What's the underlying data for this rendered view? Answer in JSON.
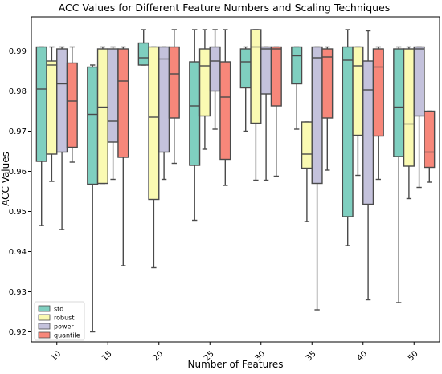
{
  "chart_data": {
    "type": "box",
    "title": "ACC Values for Different Feature Numbers and Scaling Techniques",
    "xlabel": "Number of Features",
    "ylabel": "ACC Values",
    "categories": [
      "10",
      "15",
      "20",
      "25",
      "30",
      "35",
      "40",
      "50"
    ],
    "ylim": [
      0.9175,
      0.9985
    ],
    "yticks": [
      0.92,
      0.93,
      0.94,
      0.95,
      0.96,
      0.97,
      0.98,
      0.99
    ],
    "ytick_labels": [
      "0.92",
      "0.93",
      "0.94",
      "0.95",
      "0.96",
      "0.97",
      "0.98",
      "0.99"
    ],
    "legend_position": "lower-left",
    "grid": false,
    "series": [
      {
        "name": "std",
        "color": "#7fcfc0",
        "boxes": [
          {
            "whislo": 0.9465,
            "q1": 0.9625,
            "med": 0.9805,
            "q3": 0.991,
            "whishi": 0.991
          },
          {
            "whislo": 0.92,
            "q1": 0.9568,
            "med": 0.9742,
            "q3": 0.986,
            "whishi": 0.9865
          },
          {
            "whislo": 0.9865,
            "q1": 0.9865,
            "med": 0.9883,
            "q3": 0.992,
            "whishi": 0.9953
          },
          {
            "whislo": 0.9478,
            "q1": 0.9615,
            "med": 0.9763,
            "q3": 0.9873,
            "whishi": 0.9953
          },
          {
            "whislo": 0.97,
            "q1": 0.9808,
            "med": 0.9873,
            "q3": 0.9905,
            "whishi": 0.991
          },
          {
            "whislo": 0.9705,
            "q1": 0.9818,
            "med": 0.9888,
            "q3": 0.991,
            "whishi": 0.991
          },
          {
            "whislo": 0.9415,
            "q1": 0.9487,
            "med": 0.9877,
            "q3": 0.991,
            "whishi": 0.9953
          },
          {
            "whislo": 0.9273,
            "q1": 0.9637,
            "med": 0.976,
            "q3": 0.9905,
            "whishi": 0.991
          }
        ]
      },
      {
        "name": "robust",
        "color": "#fafab2",
        "boxes": [
          {
            "whislo": 0.9575,
            "q1": 0.9643,
            "med": 0.9865,
            "q3": 0.9875,
            "whishi": 0.991
          },
          {
            "whislo": 0.957,
            "q1": 0.957,
            "med": 0.976,
            "q3": 0.9905,
            "whishi": 0.991
          },
          {
            "whislo": 0.936,
            "q1": 0.953,
            "med": 0.9735,
            "q3": 0.991,
            "whishi": 0.991
          },
          {
            "whislo": 0.9655,
            "q1": 0.9738,
            "med": 0.9863,
            "q3": 0.9905,
            "whishi": 0.9953
          },
          {
            "whislo": 0.9578,
            "q1": 0.972,
            "med": 0.991,
            "q3": 0.9953,
            "whishi": 0.9953
          },
          {
            "whislo": 0.9475,
            "q1": 0.9608,
            "med": 0.9643,
            "q3": 0.9723,
            "whishi": 0.9723
          },
          {
            "whislo": 0.959,
            "q1": 0.969,
            "med": 0.9863,
            "q3": 0.991,
            "whishi": 0.991
          },
          {
            "whislo": 0.9532,
            "q1": 0.9613,
            "med": 0.9718,
            "q3": 0.9905,
            "whishi": 0.991
          }
        ]
      },
      {
        "name": "power",
        "color": "#c4c2dc",
        "boxes": [
          {
            "whislo": 0.9455,
            "q1": 0.9648,
            "med": 0.9818,
            "q3": 0.9905,
            "whishi": 0.991
          },
          {
            "whislo": 0.958,
            "q1": 0.9673,
            "med": 0.9725,
            "q3": 0.9905,
            "whishi": 0.991
          },
          {
            "whislo": 0.958,
            "q1": 0.9648,
            "med": 0.988,
            "q3": 0.991,
            "whishi": 0.991
          },
          {
            "whislo": 0.9705,
            "q1": 0.98,
            "med": 0.9875,
            "q3": 0.991,
            "whishi": 0.9953
          },
          {
            "whislo": 0.9578,
            "q1": 0.9793,
            "med": 0.9905,
            "q3": 0.991,
            "whishi": 0.991
          },
          {
            "whislo": 0.9255,
            "q1": 0.957,
            "med": 0.9883,
            "q3": 0.991,
            "whishi": 0.991
          },
          {
            "whislo": 0.928,
            "q1": 0.9518,
            "med": 0.9803,
            "q3": 0.9875,
            "whishi": 0.995
          },
          {
            "whislo": 0.956,
            "q1": 0.9738,
            "med": 0.9905,
            "q3": 0.991,
            "whishi": 0.991
          }
        ]
      },
      {
        "name": "quantile",
        "color": "#f7877a",
        "boxes": [
          {
            "whislo": 0.9623,
            "q1": 0.966,
            "med": 0.9775,
            "q3": 0.987,
            "whishi": 0.991
          },
          {
            "whislo": 0.9365,
            "q1": 0.9635,
            "med": 0.9825,
            "q3": 0.9905,
            "whishi": 0.991
          },
          {
            "whislo": 0.962,
            "q1": 0.9733,
            "med": 0.9843,
            "q3": 0.991,
            "whishi": 0.9953
          },
          {
            "whislo": 0.9565,
            "q1": 0.963,
            "med": 0.9785,
            "q3": 0.9873,
            "whishi": 0.9953
          },
          {
            "whislo": 0.9588,
            "q1": 0.9763,
            "med": 0.9905,
            "q3": 0.991,
            "whishi": 0.991
          },
          {
            "whislo": 0.9603,
            "q1": 0.9733,
            "med": 0.9885,
            "q3": 0.9905,
            "whishi": 0.991
          },
          {
            "whislo": 0.958,
            "q1": 0.9688,
            "med": 0.986,
            "q3": 0.9905,
            "whishi": 0.991
          },
          {
            "whislo": 0.9573,
            "q1": 0.961,
            "med": 0.9648,
            "q3": 0.975,
            "whishi": 0.975
          }
        ]
      }
    ]
  }
}
